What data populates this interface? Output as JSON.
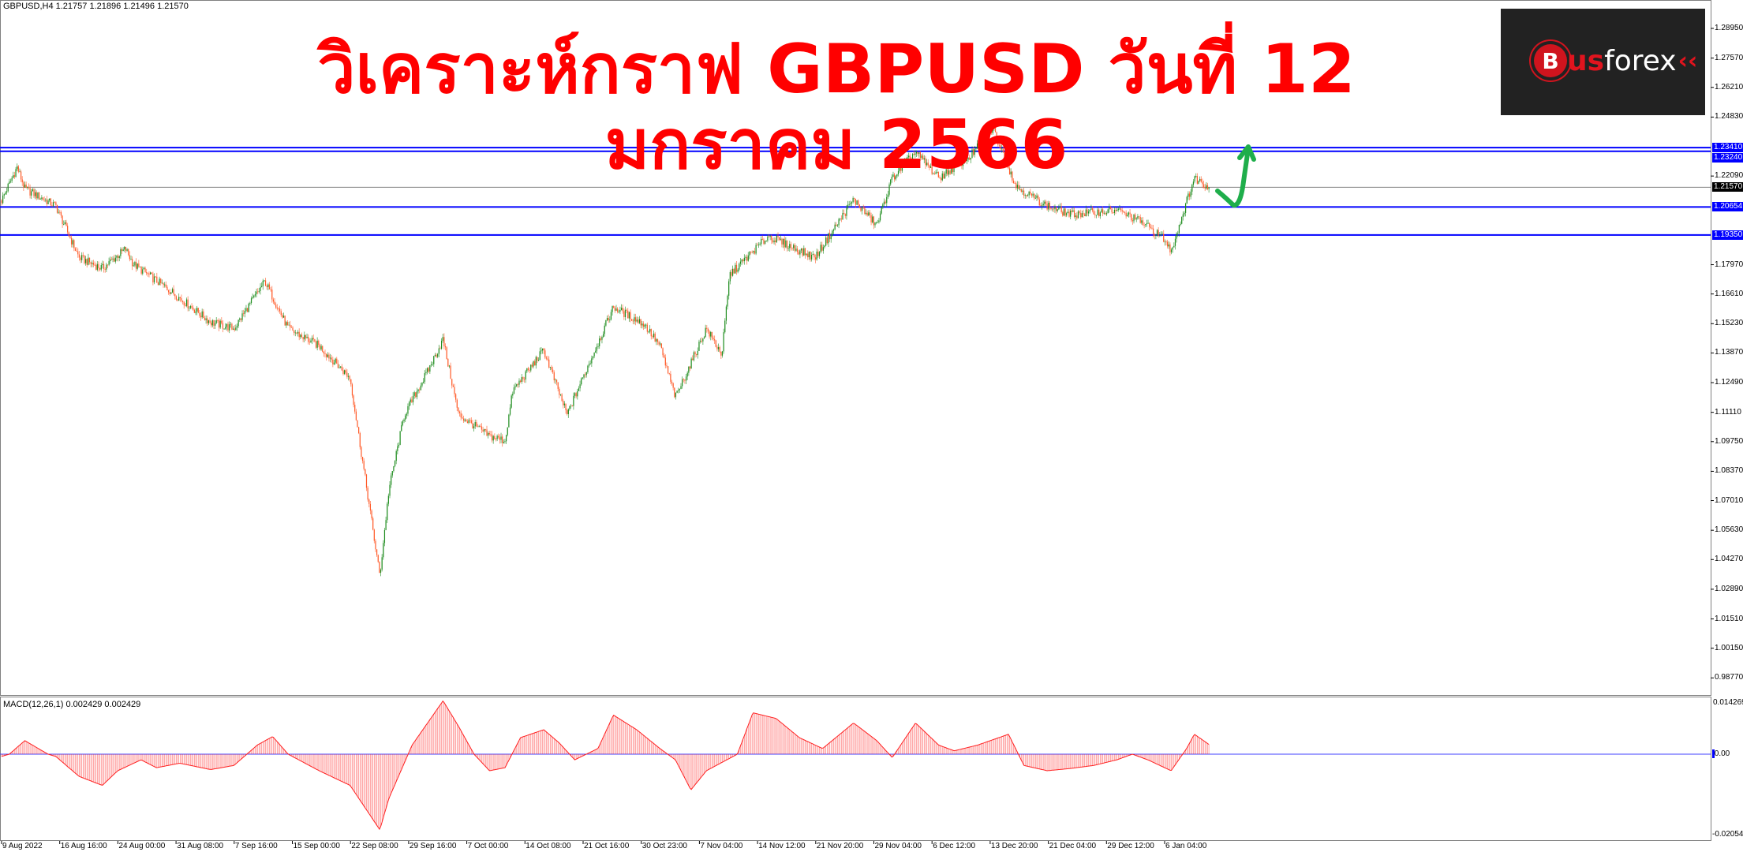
{
  "header": {
    "symbol_info": "GBPUSD,H4  1.21757 1.21896 1.21496 1.21570",
    "title": "วิเคราะห์กราฟ GBPUSD วันที่ 12 มกราคม 2566"
  },
  "logo": {
    "text": "Busforex",
    "b": "B",
    "us": "us",
    "forex": "forex",
    "chevrons": "‹‹"
  },
  "macd": {
    "label": "MACD(12,26,1) 0.002429 0.002429",
    "scale_top": "0.014269",
    "scale_zero": "0.00",
    "scale_bottom": "-0.020543"
  },
  "colors": {
    "bull": "#1e8c1e",
    "bear": "#ff5a28",
    "level": "#0000ff",
    "current": "#808080",
    "macd": "#ff2020",
    "arrow": "#1fae4b",
    "title": "#ff0000"
  },
  "chart_data": {
    "type": "candlestick",
    "symbol": "GBPUSD",
    "timeframe": "H4",
    "ohlc_last": {
      "open": 1.21757,
      "high": 1.21896,
      "low": 1.21496,
      "close": 1.2157
    },
    "y_ticks": [
      "1.28950",
      "1.27570",
      "1.26210",
      "1.24830",
      "1.22090",
      "1.17970",
      "1.16610",
      "1.15230",
      "1.13870",
      "1.12490",
      "1.11110",
      "1.09750",
      "1.08370",
      "1.07010",
      "1.05630",
      "1.04270",
      "1.02890",
      "1.01510",
      "1.00150",
      "0.98770"
    ],
    "y_tick_values": [
      1.2895,
      1.2757,
      1.2621,
      1.2483,
      1.2209,
      1.1797,
      1.1661,
      1.1523,
      1.1387,
      1.1249,
      1.1111,
      1.0975,
      1.0837,
      1.0701,
      1.0563,
      1.0427,
      1.0289,
      1.0151,
      1.0015,
      0.9877
    ],
    "x_ticks": [
      "9 Aug 2022",
      "16 Aug 16:00",
      "24 Aug 00:00",
      "31 Aug 08:00",
      "7 Sep 16:00",
      "15 Sep 00:00",
      "22 Sep 08:00",
      "29 Sep 16:00",
      "7 Oct 00:00",
      "14 Oct 08:00",
      "21 Oct 16:00",
      "30 Oct 23:00",
      "7 Nov 04:00",
      "14 Nov 12:00",
      "21 Nov 20:00",
      "29 Nov 04:00",
      "6 Dec 12:00",
      "13 Dec 20:00",
      "21 Dec 04:00",
      "29 Dec 12:00",
      "6 Jan 04:00"
    ],
    "levels": [
      {
        "value": 1.2341,
        "label": "1.23410"
      },
      {
        "value": 1.2324,
        "label": "1.23240"
      },
      {
        "value": 1.20654,
        "label": "1.20654"
      },
      {
        "value": 1.1935,
        "label": "1.19350"
      }
    ],
    "current_price": {
      "value": 1.2157,
      "label": "1.21570"
    },
    "price_path": [
      {
        "t": "2022-08-09",
        "p": 1.2096
      },
      {
        "t": "2022-08-11",
        "p": 1.225
      },
      {
        "t": "2022-08-12",
        "p": 1.215
      },
      {
        "t": "2022-08-16",
        "p": 1.207
      },
      {
        "t": "2022-08-19",
        "p": 1.183
      },
      {
        "t": "2022-08-22",
        "p": 1.178
      },
      {
        "t": "2022-08-25",
        "p": 1.187
      },
      {
        "t": "2022-08-26",
        "p": 1.18
      },
      {
        "t": "2022-08-31",
        "p": 1.167
      },
      {
        "t": "2022-09-05",
        "p": 1.153
      },
      {
        "t": "2022-09-08",
        "p": 1.15
      },
      {
        "t": "2022-09-12",
        "p": 1.172
      },
      {
        "t": "2022-09-15",
        "p": 1.15
      },
      {
        "t": "2022-09-19",
        "p": 1.142
      },
      {
        "t": "2022-09-23",
        "p": 1.127
      },
      {
        "t": "2022-09-26T20:00",
        "p": 1.035
      },
      {
        "t": "2022-09-28",
        "p": 1.075
      },
      {
        "t": "2022-09-30",
        "p": 1.11
      },
      {
        "t": "2022-10-03",
        "p": 1.13
      },
      {
        "t": "2022-10-05",
        "p": 1.145
      },
      {
        "t": "2022-10-07",
        "p": 1.11
      },
      {
        "t": "2022-10-11",
        "p": 1.1
      },
      {
        "t": "2022-10-13",
        "p": 1.098
      },
      {
        "t": "2022-10-14",
        "p": 1.121
      },
      {
        "t": "2022-10-18",
        "p": 1.14
      },
      {
        "t": "2022-10-21",
        "p": 1.11
      },
      {
        "t": "2022-10-27",
        "p": 1.16
      },
      {
        "t": "2022-10-31",
        "p": 1.152
      },
      {
        "t": "2022-11-02",
        "p": 1.142
      },
      {
        "t": "2022-11-04",
        "p": 1.118
      },
      {
        "t": "2022-11-08",
        "p": 1.15
      },
      {
        "t": "2022-11-10",
        "p": 1.138
      },
      {
        "t": "2022-11-11",
        "p": 1.175
      },
      {
        "t": "2022-11-16",
        "p": 1.193
      },
      {
        "t": "2022-11-22",
        "p": 1.183
      },
      {
        "t": "2022-11-27",
        "p": 1.21
      },
      {
        "t": "2022-11-30",
        "p": 1.198
      },
      {
        "t": "2022-12-02",
        "p": 1.22
      },
      {
        "t": "2022-12-05",
        "p": 1.232
      },
      {
        "t": "2022-12-08",
        "p": 1.22
      },
      {
        "t": "2022-12-12",
        "p": 1.23
      },
      {
        "t": "2022-12-15",
        "p": 1.243
      },
      {
        "t": "2022-12-18",
        "p": 1.216
      },
      {
        "t": "2022-12-22",
        "p": 1.207
      },
      {
        "t": "2022-12-25",
        "p": 1.203
      },
      {
        "t": "2022-12-31",
        "p": 1.205
      },
      {
        "t": "2023-01-03",
        "p": 1.2
      },
      {
        "t": "2023-01-06",
        "p": 1.192
      },
      {
        "t": "2023-01-07",
        "p": 1.186
      },
      {
        "t": "2023-01-09",
        "p": 1.209
      },
      {
        "t": "2023-01-10",
        "p": 1.22
      },
      {
        "t": "2023-01-12",
        "p": 1.2157
      }
    ],
    "macd_path": [
      {
        "t": "2022-08-09",
        "v": -0.0006
      },
      {
        "t": "2022-08-10",
        "v": 0
      },
      {
        "t": "2022-08-12",
        "v": 0.0036
      },
      {
        "t": "2022-08-15",
        "v": 0
      },
      {
        "t": "2022-08-16",
        "v": -0.0006
      },
      {
        "t": "2022-08-19",
        "v": -0.0059
      },
      {
        "t": "2022-08-22",
        "v": -0.0083
      },
      {
        "t": "2022-08-24",
        "v": -0.0044
      },
      {
        "t": "2022-08-27",
        "v": -0.0015
      },
      {
        "t": "2022-08-29",
        "v": -0.0036
      },
      {
        "t": "2022-09-01",
        "v": -0.0024
      },
      {
        "t": "2022-09-05",
        "v": -0.0041
      },
      {
        "t": "2022-09-08",
        "v": -0.003
      },
      {
        "t": "2022-09-11",
        "v": 0.0024
      },
      {
        "t": "2022-09-13",
        "v": 0.0047
      },
      {
        "t": "2022-09-15",
        "v": 0
      },
      {
        "t": "2022-09-19",
        "v": -0.0044
      },
      {
        "t": "2022-09-23",
        "v": -0.0083
      },
      {
        "t": "2022-09-26T20:00",
        "v": -0.0201
      },
      {
        "t": "2022-09-28",
        "v": -0.0118
      },
      {
        "t": "2022-10-01",
        "v": 0.0024
      },
      {
        "t": "2022-10-03",
        "v": 0.0083
      },
      {
        "t": "2022-10-05",
        "v": 0.0142
      },
      {
        "t": "2022-10-07",
        "v": 0.0074
      },
      {
        "t": "2022-10-09",
        "v": 0
      },
      {
        "t": "2022-10-11",
        "v": -0.0044
      },
      {
        "t": "2022-10-13",
        "v": -0.0036
      },
      {
        "t": "2022-10-15",
        "v": 0.0044
      },
      {
        "t": "2022-10-18",
        "v": 0.0065
      },
      {
        "t": "2022-10-20",
        "v": 0.003
      },
      {
        "t": "2022-10-22",
        "v": -0.0015
      },
      {
        "t": "2022-10-25",
        "v": 0.0015
      },
      {
        "t": "2022-10-27",
        "v": 0.0104
      },
      {
        "t": "2022-10-30",
        "v": 0.0065
      },
      {
        "t": "2022-11-02",
        "v": 0.0015
      },
      {
        "t": "2022-11-04",
        "v": -0.0015
      },
      {
        "t": "2022-11-06",
        "v": -0.0095
      },
      {
        "t": "2022-11-08",
        "v": -0.0044
      },
      {
        "t": "2022-11-12",
        "v": 0
      },
      {
        "t": "2022-11-14",
        "v": 0.011
      },
      {
        "t": "2022-11-17",
        "v": 0.0095
      },
      {
        "t": "2022-11-20",
        "v": 0.0044
      },
      {
        "t": "2022-11-23",
        "v": 0.0015
      },
      {
        "t": "2022-11-27",
        "v": 0.0083
      },
      {
        "t": "2022-11-30",
        "v": 0.0036
      },
      {
        "t": "2022-12-02",
        "v": -0.0009
      },
      {
        "t": "2022-12-05",
        "v": 0.0083
      },
      {
        "t": "2022-12-08",
        "v": 0.0024
      },
      {
        "t": "2022-12-10",
        "v": 0.0009
      },
      {
        "t": "2022-12-13",
        "v": 0.0024
      },
      {
        "t": "2022-12-17",
        "v": 0.0053
      },
      {
        "t": "2022-12-19",
        "v": -0.003
      },
      {
        "t": "2022-12-22",
        "v": -0.0044
      },
      {
        "t": "2022-12-25",
        "v": -0.0038
      },
      {
        "t": "2022-12-28",
        "v": -0.003
      },
      {
        "t": "2022-12-31",
        "v": -0.0015
      },
      {
        "t": "2023-01-02",
        "v": 0
      },
      {
        "t": "2023-01-04",
        "v": -0.0015
      },
      {
        "t": "2023-01-07",
        "v": -0.0044
      },
      {
        "t": "2023-01-09",
        "v": 0.0015
      },
      {
        "t": "2023-01-10",
        "v": 0.0053
      },
      {
        "t": "2023-01-12",
        "v": 0.002429
      }
    ],
    "macd_ylim": [
      -0.020543,
      0.014269
    ]
  }
}
